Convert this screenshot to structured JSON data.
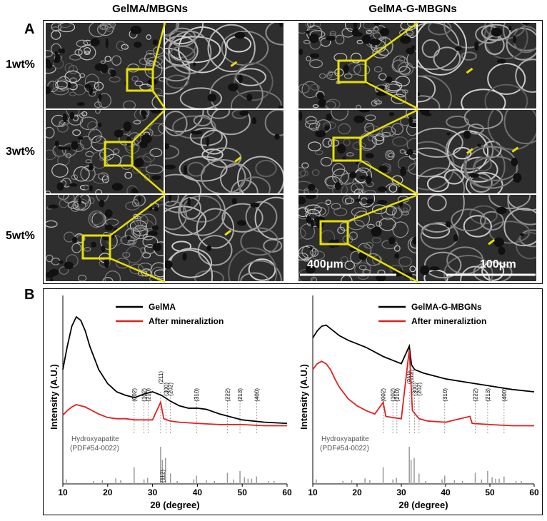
{
  "panel_a": {
    "letter": "A",
    "columns": [
      "GelMA/MBGNs",
      "GelMA-G-MBGNs"
    ],
    "rows": [
      "1wt%",
      "3wt%",
      "5wt%"
    ],
    "scale_bars": [
      "400μm",
      "100μm"
    ],
    "highlight_color": "#e8e000"
  },
  "panel_b": {
    "letter": "B",
    "reference_label": [
      "Hydroxyapatite",
      "(PDF#54-0022)"
    ]
  },
  "chart_data": [
    {
      "type": "line",
      "xlabel": "2θ (degree)",
      "ylabel": "Intensity (A.U.)",
      "xlim": [
        10,
        60
      ],
      "xticks": [
        10,
        20,
        30,
        40,
        50,
        60
      ],
      "series": [
        {
          "name": "GelMA",
          "color": "#000000",
          "x": [
            10,
            11,
            12,
            13,
            14,
            15,
            16,
            18,
            20,
            22,
            24,
            26,
            28,
            30,
            32,
            34,
            36,
            38,
            40,
            42,
            45,
            50,
            55,
            60
          ],
          "y": [
            0.55,
            0.75,
            0.92,
            1.0,
            0.97,
            0.88,
            0.75,
            0.55,
            0.43,
            0.36,
            0.33,
            0.31,
            0.34,
            0.36,
            0.33,
            0.28,
            0.24,
            0.22,
            0.22,
            0.21,
            0.17,
            0.12,
            0.1,
            0.09
          ]
        },
        {
          "name": "After mineraliztion",
          "color": "#e02020",
          "x": [
            10,
            11,
            12,
            13,
            14,
            15,
            16,
            18,
            20,
            22,
            24,
            26,
            28,
            30,
            31.8,
            32.5,
            34,
            36,
            40,
            45,
            50,
            55,
            60
          ],
          "y": [
            0.16,
            0.2,
            0.23,
            0.25,
            0.24,
            0.23,
            0.21,
            0.17,
            0.14,
            0.13,
            0.13,
            0.12,
            0.12,
            0.12,
            0.27,
            0.13,
            0.11,
            0.1,
            0.09,
            0.08,
            0.08,
            0.07,
            0.07
          ]
        }
      ],
      "peak_labels": [
        {
          "x": 25.9,
          "label": "(002)"
        },
        {
          "x": 28.1,
          "label": "(102)"
        },
        {
          "x": 29.0,
          "label": "(210)"
        },
        {
          "x": 31.8,
          "label": "(211)"
        },
        {
          "x": 32.2,
          "label": "(112)"
        },
        {
          "x": 33.0,
          "label": "(300)"
        },
        {
          "x": 34.0,
          "label": "(202)"
        },
        {
          "x": 39.8,
          "label": "(310)"
        },
        {
          "x": 46.7,
          "label": "(222)"
        },
        {
          "x": 49.5,
          "label": "(213)"
        },
        {
          "x": 53.2,
          "label": "(400)"
        }
      ],
      "reference_sticks": [
        {
          "x": 10.8,
          "h": 0.12
        },
        {
          "x": 16.8,
          "h": 0.08
        },
        {
          "x": 18.8,
          "h": 0.1
        },
        {
          "x": 21.8,
          "h": 0.15
        },
        {
          "x": 22.9,
          "h": 0.1
        },
        {
          "x": 25.9,
          "h": 0.45
        },
        {
          "x": 28.1,
          "h": 0.12
        },
        {
          "x": 28.9,
          "h": 0.16
        },
        {
          "x": 31.8,
          "h": 1.0
        },
        {
          "x": 32.2,
          "h": 0.65
        },
        {
          "x": 32.9,
          "h": 0.7
        },
        {
          "x": 34.0,
          "h": 0.28
        },
        {
          "x": 35.5,
          "h": 0.08
        },
        {
          "x": 39.2,
          "h": 0.12
        },
        {
          "x": 39.8,
          "h": 0.22
        },
        {
          "x": 42.0,
          "h": 0.1
        },
        {
          "x": 43.8,
          "h": 0.08
        },
        {
          "x": 46.7,
          "h": 0.3
        },
        {
          "x": 48.1,
          "h": 0.12
        },
        {
          "x": 49.5,
          "h": 0.35
        },
        {
          "x": 50.5,
          "h": 0.18
        },
        {
          "x": 51.3,
          "h": 0.14
        },
        {
          "x": 52.1,
          "h": 0.14
        },
        {
          "x": 53.2,
          "h": 0.2
        },
        {
          "x": 55.9,
          "h": 0.08
        },
        {
          "x": 57.1,
          "h": 0.08
        }
      ]
    },
    {
      "type": "line",
      "xlabel": "2θ (degree)",
      "ylabel": "Intensity (A.U.)",
      "xlim": [
        10,
        60
      ],
      "xticks": [
        10,
        20,
        30,
        40,
        50,
        60
      ],
      "series": [
        {
          "name": "GelMA-G-MBGNs",
          "color": "#000000",
          "x": [
            10,
            11,
            12,
            13,
            14,
            15,
            16,
            18,
            20,
            22,
            24,
            26,
            28,
            30,
            31.8,
            32.3,
            33,
            35,
            38,
            40,
            45,
            50,
            55,
            60
          ],
          "y": [
            0.82,
            0.88,
            0.92,
            0.93,
            0.9,
            0.87,
            0.84,
            0.8,
            0.77,
            0.74,
            0.7,
            0.66,
            0.63,
            0.6,
            0.75,
            0.59,
            0.55,
            0.52,
            0.49,
            0.47,
            0.44,
            0.41,
            0.38,
            0.36
          ]
        },
        {
          "name": "After mineraliztion",
          "color": "#e02020",
          "x": [
            10,
            11,
            12,
            13,
            14,
            15,
            16,
            18,
            20,
            22,
            24,
            25.9,
            26.5,
            28,
            30,
            31.8,
            32.5,
            34,
            36,
            40,
            45.5,
            46,
            50,
            55,
            60
          ],
          "y": [
            0.55,
            0.6,
            0.62,
            0.6,
            0.55,
            0.47,
            0.4,
            0.3,
            0.24,
            0.2,
            0.17,
            0.27,
            0.15,
            0.14,
            0.13,
            0.72,
            0.2,
            0.13,
            0.11,
            0.1,
            0.15,
            0.09,
            0.08,
            0.07,
            0.07
          ]
        }
      ],
      "peak_labels": [
        {
          "x": 25.9,
          "label": "(002)"
        },
        {
          "x": 28.1,
          "label": "(102)"
        },
        {
          "x": 29.0,
          "label": "(210)"
        },
        {
          "x": 31.8,
          "label": "(211)"
        },
        {
          "x": 32.2,
          "label": "(112)"
        },
        {
          "x": 33.0,
          "label": "(300)"
        },
        {
          "x": 34.0,
          "label": "(202)"
        },
        {
          "x": 39.8,
          "label": "(310)"
        },
        {
          "x": 46.7,
          "label": "(222)"
        },
        {
          "x": 49.5,
          "label": "(213)"
        },
        {
          "x": 53.2,
          "label": "(400)"
        }
      ],
      "reference_sticks": [
        {
          "x": 10.8,
          "h": 0.12
        },
        {
          "x": 16.8,
          "h": 0.08
        },
        {
          "x": 18.8,
          "h": 0.1
        },
        {
          "x": 21.8,
          "h": 0.15
        },
        {
          "x": 22.9,
          "h": 0.1
        },
        {
          "x": 25.9,
          "h": 0.45
        },
        {
          "x": 28.1,
          "h": 0.12
        },
        {
          "x": 28.9,
          "h": 0.16
        },
        {
          "x": 31.8,
          "h": 1.0
        },
        {
          "x": 32.2,
          "h": 0.65
        },
        {
          "x": 32.9,
          "h": 0.7
        },
        {
          "x": 34.0,
          "h": 0.28
        },
        {
          "x": 35.5,
          "h": 0.08
        },
        {
          "x": 39.2,
          "h": 0.12
        },
        {
          "x": 39.8,
          "h": 0.22
        },
        {
          "x": 42.0,
          "h": 0.1
        },
        {
          "x": 43.8,
          "h": 0.08
        },
        {
          "x": 46.7,
          "h": 0.3
        },
        {
          "x": 48.1,
          "h": 0.12
        },
        {
          "x": 49.5,
          "h": 0.35
        },
        {
          "x": 50.5,
          "h": 0.18
        },
        {
          "x": 51.3,
          "h": 0.14
        },
        {
          "x": 52.1,
          "h": 0.14
        },
        {
          "x": 53.2,
          "h": 0.2
        },
        {
          "x": 55.9,
          "h": 0.08
        },
        {
          "x": 57.1,
          "h": 0.08
        }
      ]
    }
  ]
}
